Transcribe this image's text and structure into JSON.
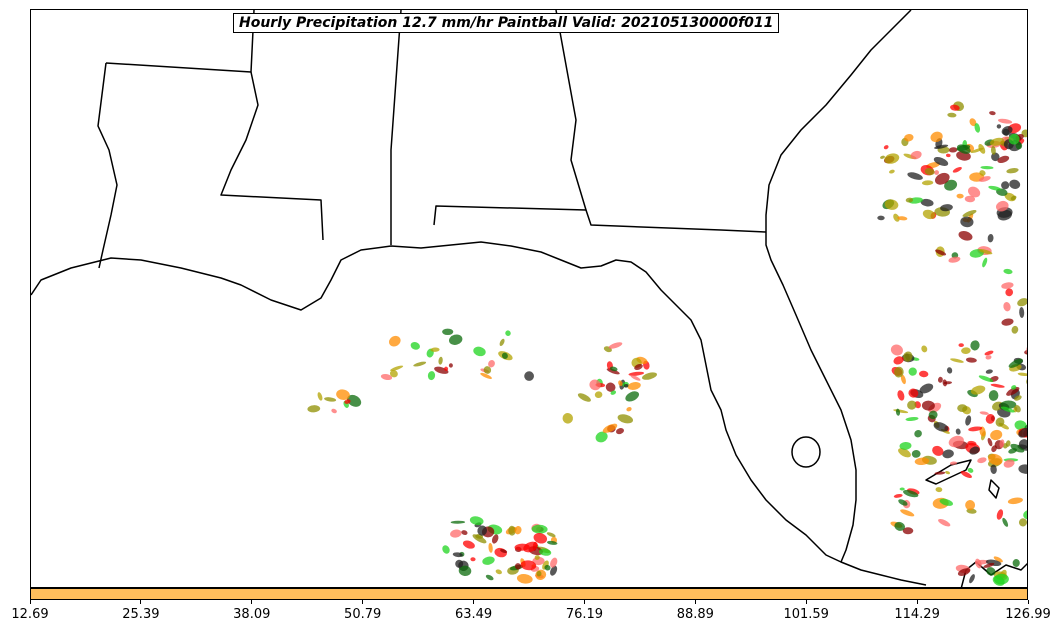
{
  "title": "Hourly Precipitation 12.7 mm/hr Paintball Valid: 202105130000f011",
  "colorbar": {
    "color": "#ffbe5c",
    "ticks": [
      "12.69",
      "25.39",
      "38.09",
      "50.79",
      "63.49",
      "76.19",
      "88.89",
      "101.59",
      "114.29",
      "126.99"
    ]
  },
  "paintball_colors": [
    "#ff0000",
    "#ff8c00",
    "#1fd41f",
    "#8b0000",
    "#0b6b0b",
    "#8f8f00",
    "#202020",
    "#ff6a6a",
    "#b3a300"
  ]
}
